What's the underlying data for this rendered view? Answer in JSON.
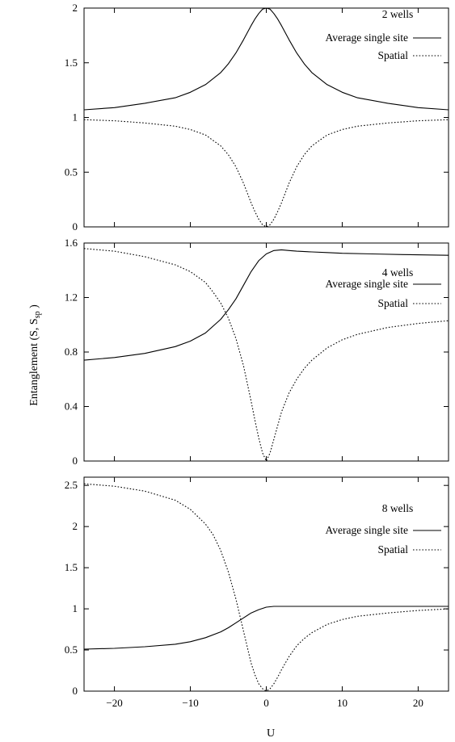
{
  "figure": {
    "ylabel_main": "Entanglement (S, S",
    "ylabel_sub": "sp",
    "ylabel_close": " )",
    "xlabel": "U"
  },
  "chart_data": [
    {
      "type": "line",
      "title": "2 wells",
      "xlabel": "U",
      "ylabel": "Entanglement (S, Ssp )",
      "xlim": [
        -24,
        24
      ],
      "ylim": [
        0,
        2
      ],
      "yticks": [
        0,
        0.5,
        1,
        1.5,
        2
      ],
      "ytick_labels": [
        "0",
        "0.5",
        "1",
        "1.5",
        "2"
      ],
      "xticks": [
        -20,
        -10,
        0,
        10,
        20
      ],
      "grid": false,
      "legend_position": "top-right",
      "series": [
        {
          "name": "Average single site",
          "style": "solid",
          "x": [
            -24,
            -20,
            -16,
            -12,
            -10,
            -8,
            -6,
            -5,
            -4,
            -3,
            -2,
            -1.5,
            -1,
            -0.5,
            0,
            0.5,
            1,
            1.5,
            2,
            3,
            4,
            5,
            6,
            8,
            10,
            12,
            16,
            20,
            24
          ],
          "y": [
            1.07,
            1.09,
            1.13,
            1.18,
            1.23,
            1.3,
            1.41,
            1.49,
            1.59,
            1.71,
            1.84,
            1.9,
            1.95,
            1.99,
            2.0,
            1.99,
            1.95,
            1.9,
            1.84,
            1.71,
            1.59,
            1.49,
            1.41,
            1.3,
            1.23,
            1.18,
            1.13,
            1.09,
            1.07
          ]
        },
        {
          "name": "Spatial",
          "style": "dotted",
          "x": [
            -24,
            -20,
            -16,
            -12,
            -10,
            -8,
            -6,
            -5,
            -4,
            -3,
            -2,
            -1.5,
            -1,
            -0.5,
            0,
            0.5,
            1,
            1.5,
            2,
            3,
            4,
            5,
            6,
            8,
            10,
            12,
            16,
            20,
            24
          ],
          "y": [
            0.98,
            0.97,
            0.95,
            0.92,
            0.89,
            0.84,
            0.74,
            0.66,
            0.55,
            0.4,
            0.22,
            0.14,
            0.07,
            0.02,
            0.0,
            0.02,
            0.07,
            0.14,
            0.22,
            0.4,
            0.55,
            0.66,
            0.74,
            0.84,
            0.89,
            0.92,
            0.95,
            0.97,
            0.98
          ]
        }
      ]
    },
    {
      "type": "line",
      "title": "4 wells",
      "xlim": [
        -24,
        24
      ],
      "ylim": [
        0,
        1.6
      ],
      "yticks": [
        0,
        0.4,
        0.8,
        1.2,
        1.6
      ],
      "ytick_labels": [
        "0",
        "0.4",
        "0.8",
        "1.2",
        "1.6"
      ],
      "xticks": [
        -20,
        -10,
        0,
        10,
        20
      ],
      "grid": false,
      "legend_position": "top-right",
      "series": [
        {
          "name": "Average single site",
          "style": "solid",
          "x": [
            -24,
            -20,
            -16,
            -12,
            -10,
            -8,
            -6,
            -5,
            -4,
            -3,
            -2,
            -1,
            0,
            1,
            2,
            3,
            4,
            6,
            8,
            10,
            14,
            18,
            24
          ],
          "y": [
            0.74,
            0.76,
            0.79,
            0.84,
            0.88,
            0.94,
            1.04,
            1.11,
            1.19,
            1.29,
            1.39,
            1.47,
            1.52,
            1.545,
            1.55,
            1.545,
            1.54,
            1.535,
            1.53,
            1.525,
            1.52,
            1.515,
            1.51
          ]
        },
        {
          "name": "Spatial",
          "style": "dotted",
          "x": [
            -24,
            -20,
            -16,
            -12,
            -10,
            -8,
            -7,
            -6,
            -5,
            -4,
            -3,
            -2,
            -1.5,
            -1,
            -0.5,
            0,
            0.5,
            1,
            1.5,
            2,
            3,
            4,
            5,
            6,
            8,
            10,
            12,
            16,
            20,
            24
          ],
          "y": [
            1.56,
            1.54,
            1.5,
            1.44,
            1.39,
            1.31,
            1.24,
            1.16,
            1.05,
            0.9,
            0.7,
            0.44,
            0.3,
            0.17,
            0.06,
            0.0,
            0.06,
            0.16,
            0.26,
            0.36,
            0.5,
            0.6,
            0.68,
            0.74,
            0.83,
            0.89,
            0.93,
            0.98,
            1.01,
            1.03
          ]
        }
      ]
    },
    {
      "type": "line",
      "title": "8 wells",
      "xlim": [
        -24,
        24
      ],
      "ylim": [
        0,
        2.6
      ],
      "yticks": [
        0,
        0.5,
        1,
        1.5,
        2,
        2.5
      ],
      "ytick_labels": [
        "0",
        "0.5",
        "1",
        "1.5",
        "2",
        "2.5"
      ],
      "xticks": [
        -20,
        -10,
        0,
        10,
        20
      ],
      "xtick_labels": [
        "−20",
        "−10",
        "0",
        "10",
        "20"
      ],
      "grid": false,
      "legend_position": "top-right",
      "series": [
        {
          "name": "Average single site",
          "style": "solid",
          "x": [
            -24,
            -20,
            -16,
            -12,
            -10,
            -8,
            -6,
            -5,
            -4,
            -3,
            -2,
            -1,
            0,
            1,
            2,
            4,
            8,
            12,
            16,
            20,
            24
          ],
          "y": [
            0.51,
            0.52,
            0.54,
            0.57,
            0.6,
            0.65,
            0.72,
            0.77,
            0.83,
            0.89,
            0.95,
            0.99,
            1.02,
            1.03,
            1.03,
            1.03,
            1.03,
            1.03,
            1.03,
            1.03,
            1.03
          ]
        },
        {
          "name": "Spatial",
          "style": "dotted",
          "x": [
            -24,
            -20,
            -16,
            -12,
            -10,
            -8,
            -7,
            -6,
            -5,
            -4,
            -3,
            -2,
            -1.5,
            -1,
            -0.5,
            0,
            0.5,
            1,
            1.5,
            2,
            3,
            4,
            5,
            6,
            8,
            10,
            12,
            16,
            20,
            24
          ],
          "y": [
            2.52,
            2.49,
            2.43,
            2.32,
            2.21,
            2.03,
            1.9,
            1.71,
            1.45,
            1.12,
            0.73,
            0.34,
            0.2,
            0.09,
            0.03,
            0.0,
            0.03,
            0.09,
            0.17,
            0.26,
            0.42,
            0.55,
            0.64,
            0.71,
            0.81,
            0.87,
            0.91,
            0.95,
            0.98,
            1.0
          ]
        }
      ]
    }
  ]
}
